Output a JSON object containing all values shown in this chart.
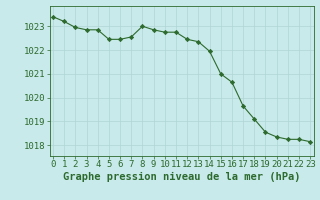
{
  "x": [
    0,
    1,
    2,
    3,
    4,
    5,
    6,
    7,
    8,
    9,
    10,
    11,
    12,
    13,
    14,
    15,
    16,
    17,
    18,
    19,
    20,
    21,
    22,
    23
  ],
  "y": [
    1023.4,
    1023.2,
    1022.95,
    1022.85,
    1022.85,
    1022.45,
    1022.45,
    1022.55,
    1023.0,
    1022.85,
    1022.75,
    1022.75,
    1022.45,
    1022.35,
    1021.95,
    1021.0,
    1020.65,
    1019.65,
    1019.1,
    1018.55,
    1018.35,
    1018.25,
    1018.25,
    1018.15
  ],
  "line_color": "#2d6a2d",
  "marker": "D",
  "marker_size": 2.2,
  "bg_color": "#c8eaea",
  "grid_color": "#b0d4d4",
  "xlabel": "Graphe pression niveau de la mer (hPa)",
  "xlabel_fontsize": 7.5,
  "yticks": [
    1018,
    1019,
    1020,
    1021,
    1022,
    1023
  ],
  "xticks": [
    0,
    1,
    2,
    3,
    4,
    5,
    6,
    7,
    8,
    9,
    10,
    11,
    12,
    13,
    14,
    15,
    16,
    17,
    18,
    19,
    20,
    21,
    22,
    23
  ],
  "xlim": [
    -0.3,
    23.3
  ],
  "ylim": [
    1017.55,
    1023.85
  ],
  "tick_fontsize": 6.5
}
